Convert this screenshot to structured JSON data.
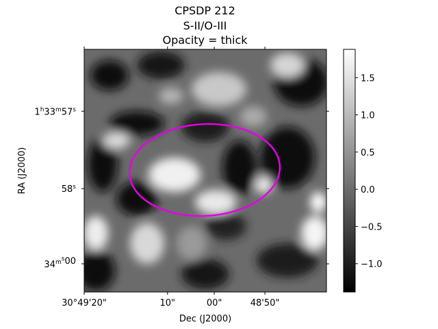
{
  "chart_data": {
    "type": "heatmap",
    "title": [
      "CPSDP 212",
      "S-II/O-III",
      "Opacity = thick"
    ],
    "xlabel": "Dec (J2000)",
    "ylabel": "RA (J2000)",
    "x_ticks": [
      "30°49'20\"",
      "10\"",
      "00\"",
      "48'50\""
    ],
    "y_ticks": [
      {
        "main": "1",
        "sup1": "h",
        "mid": "33",
        "sup2": "m",
        "end": "57",
        "sup3": "s"
      },
      {
        "main": "58",
        "sup1": "s"
      },
      {
        "main": "34",
        "sup1": "m",
        "end": "00",
        "sup2": "s"
      }
    ],
    "colorbar": {
      "colormap": "gray",
      "range": [
        -1.38,
        1.88
      ],
      "ticks": [
        -1.0,
        -0.5,
        0.0,
        0.5,
        1.0,
        1.5
      ],
      "tick_labels": [
        "−1.0",
        "−0.5",
        "0.0",
        "0.5",
        "1.0",
        "1.5"
      ]
    },
    "overlay": {
      "shape": "ellipse",
      "color": "#e600e6"
    }
  }
}
